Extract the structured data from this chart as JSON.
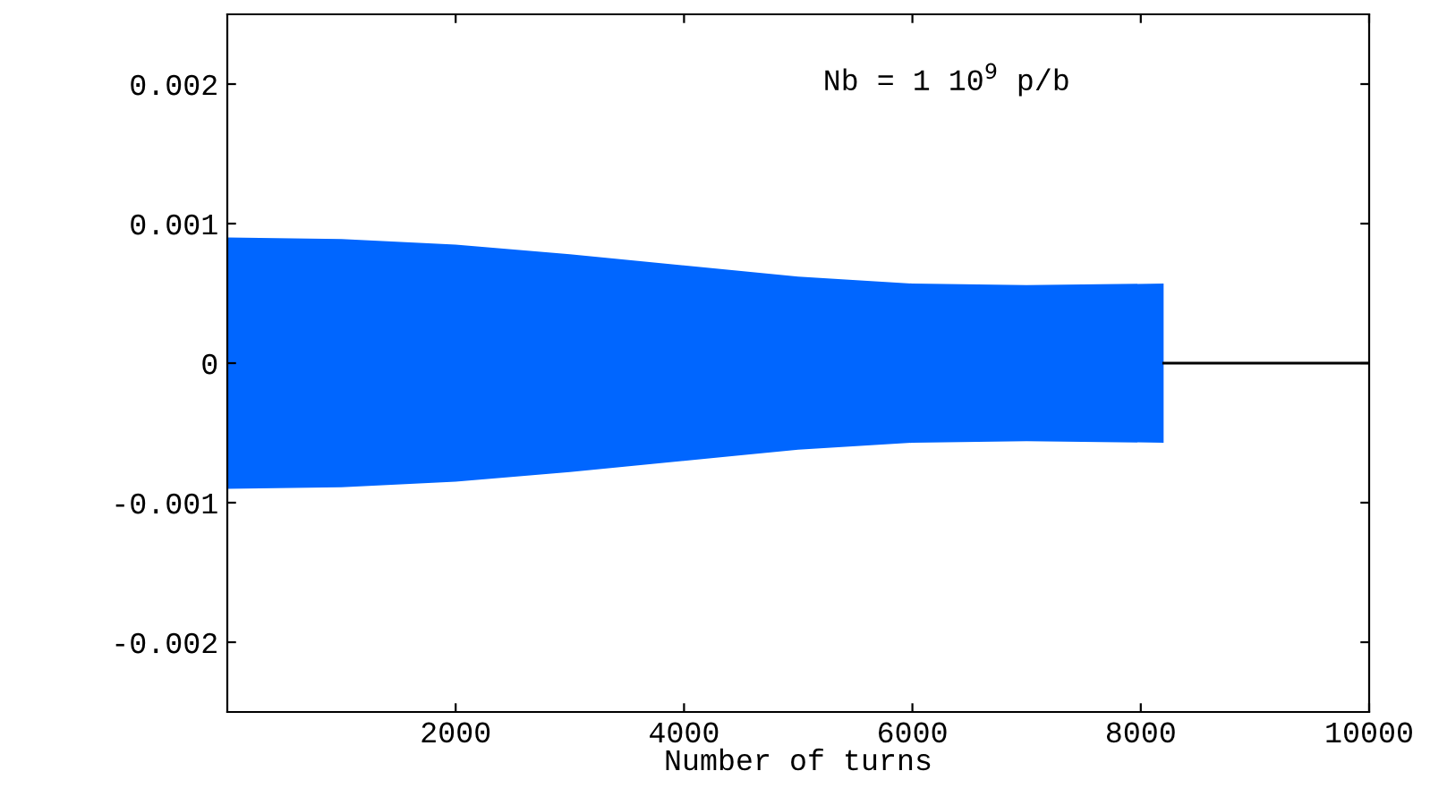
{
  "chart_data": {
    "type": "area",
    "xlabel": "Number of turns",
    "annotations": [
      {
        "text": "Nb = 1 10$^{9}$ p/b"
      }
    ],
    "x": [
      0,
      1000,
      2000,
      3000,
      4000,
      5000,
      6000,
      7000,
      8200
    ],
    "series": [
      {
        "color": "#0066ff",
        "values": [
          0.0009,
          0.00089,
          0.00085,
          0.00078,
          0.0007,
          0.00062,
          0.00057,
          0.00056,
          0.00057
        ]
      },
      {
        "color": "#0066ff",
        "values": [
          -0.0009,
          -0.00089,
          -0.00085,
          -0.00078,
          -0.0007,
          -0.00062,
          -0.00057,
          -0.00056,
          -0.00057
        ]
      },
      {
        "type": "line",
        "color": "#000000",
        "x": [
          8200,
          10000
        ],
        "values": [
          0,
          0
        ]
      }
    ],
    "xlim": [
      0,
      10000
    ],
    "xticks": [
      2000,
      4000,
      6000,
      8000,
      10000
    ],
    "ylim": [
      -0.0025,
      0.0025
    ],
    "yticks": [
      -0.002,
      -0.001,
      0,
      0.001,
      0.002
    ],
    "grid": false,
    "legend": false
  }
}
